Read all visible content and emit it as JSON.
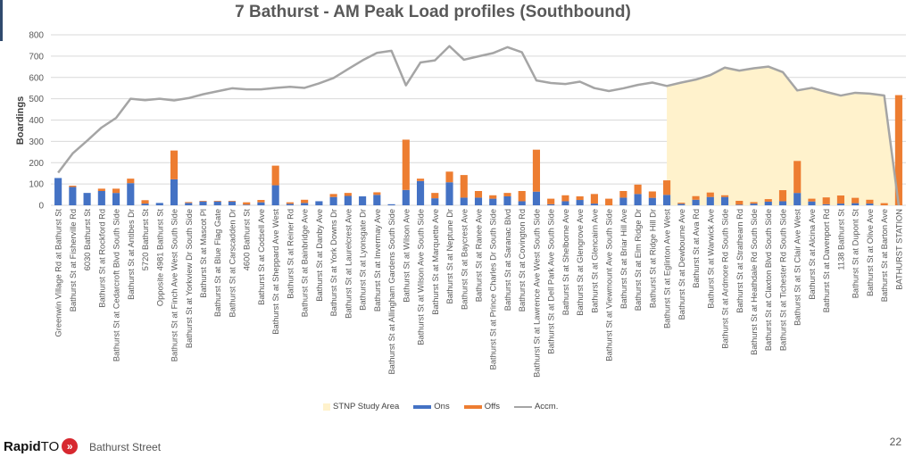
{
  "chart_data": {
    "type": "bar",
    "title": "7 Bathurst - AM Peak Load profiles (Southbound)",
    "xlabel": "",
    "ylabel": "Boardings",
    "ylim": [
      0,
      800
    ],
    "yticks": [
      0,
      100,
      200,
      300,
      400,
      500,
      600,
      700,
      800
    ],
    "grid": true,
    "legend_position": "bottom",
    "categories": [
      "Greenwin Village Rd at Bathurst St",
      "Bathurst St at Fisherville Rd",
      "6030 Bathurst St",
      "Bathurst St at Rockford Rd",
      "Bathurst St at Cedarcroft Blvd South Side",
      "Bathurst St at Antibes Dr",
      "5720 Bathurst St",
      "Opposite 4981 Bathurst St",
      "Bathurst St at Finch Ave West South Side",
      "Bathurst St at Yorkview Dr South Side",
      "Bathurst St at Mascot Pl",
      "Bathurst St at Blue Flag Gate",
      "Bathurst St at Carscadden Dr",
      "4600 Bathurst St",
      "Bathurst St at Codsell Ave",
      "Bathurst St at Sheppard Ave West",
      "Bathurst St at Reiner Rd",
      "Bathurst St at Bainbridge Ave",
      "Bathurst St at Danby Ave",
      "Bathurst St at York Downs Dr",
      "Bathurst St at Laurelcrest Ave",
      "Bathurst St at Lyonsgate Dr",
      "Bathurst St at Invermay Ave",
      "Bathurst St at Allingham Gardens South Side",
      "Bathurst St at Wilson Ave",
      "Bathurst St at Wilson Ave South Side",
      "Bathurst St at Marquette Ave",
      "Bathurst St at Neptune Dr",
      "Bathurst St at Baycrest Ave",
      "Bathurst St at Ranee Ave",
      "Bathurst St at Prince Charles Dr South Side",
      "Bathurst St at Saranac Blvd",
      "Bathurst St at Covington Rd",
      "Bathurst St at Lawrence Ave West South Side",
      "Bathurst St at Dell Park Ave South Side",
      "Bathurst St at Shelborne Ave",
      "Bathurst St at Glengrove Ave",
      "Bathurst St at Glencairn Ave",
      "Bathurst St at Viewmount Ave South Side",
      "Bathurst St at Briar Hill Ave",
      "Bathurst St at Elm Ridge Dr",
      "Bathurst St at Ridge Hill Dr",
      "Bathurst St at Eglinton Ave West",
      "Bathurst St at Dewbourne Ave",
      "Bathurst St at Ava Rd",
      "Bathurst St at Warwick Ave",
      "Bathurst St at Ardmore Rd South Side",
      "Bathurst St at Strathearn Rd",
      "Bathurst St at Heathdale Rd South Side",
      "Bathurst St at Claxton Blvd South Side",
      "Bathurst St at Tichester Rd South Side",
      "Bathurst St at St Clair Ave West",
      "Bathurst St at Alcina Ave",
      "Bathurst St at Davenport Rd",
      "1138 Bathurst St",
      "Bathurst St at Dupont St",
      "Bathurst St at Olive Ave",
      "Bathurst St at Barton Ave",
      "BATHURST STATION"
    ],
    "series": [
      {
        "name": "Ons",
        "kind": "stacked-bar",
        "color": "#4472c4",
        "values": [
          128,
          86,
          58,
          67,
          58,
          104,
          8,
          11,
          122,
          11,
          18,
          18,
          18,
          3,
          14,
          94,
          7,
          11,
          19,
          39,
          44,
          42,
          49,
          5,
          72,
          114,
          33,
          108,
          36,
          36,
          31,
          42,
          19,
          64,
          5,
          19,
          25,
          8,
          0,
          36,
          53,
          35,
          49,
          7,
          26,
          39,
          39,
          3,
          8,
          17,
          19,
          58,
          18,
          5,
          8,
          10,
          8,
          0,
          0
        ]
      },
      {
        "name": "Offs",
        "kind": "stacked-bar",
        "color": "#ed7d31",
        "values": [
          0,
          6,
          0,
          11,
          20,
          21,
          16,
          0,
          135,
          4,
          3,
          3,
          3,
          11,
          11,
          92,
          7,
          15,
          0,
          14,
          14,
          0,
          12,
          0,
          236,
          11,
          25,
          50,
          106,
          31,
          16,
          16,
          48,
          197,
          26,
          28,
          17,
          45,
          31,
          31,
          44,
          30,
          68,
          5,
          17,
          21,
          8,
          18,
          7,
          12,
          52,
          150,
          13,
          32,
          38,
          25,
          18,
          10,
          517
        ]
      },
      {
        "name": "Accm.",
        "kind": "line",
        "color": "#a5a5a5",
        "values": [
          153,
          243,
          303,
          365,
          410,
          500,
          493,
          500,
          492,
          503,
          521,
          535,
          549,
          544,
          544,
          551,
          556,
          551,
          572,
          597,
          639,
          680,
          715,
          725,
          563,
          670,
          680,
          747,
          683,
          699,
          714,
          742,
          718,
          586,
          574,
          569,
          580,
          550,
          536,
          549,
          565,
          576,
          560,
          576,
          590,
          611,
          646,
          632,
          643,
          651,
          625,
          539,
          551,
          532,
          515,
          528,
          524,
          515,
          0
        ]
      },
      {
        "name": "STNP Study Area",
        "kind": "area",
        "color": "#fff2cc",
        "from_category": "Bathurst St at Eglinton Ave West",
        "to_category": "BATHURST STATION"
      }
    ]
  },
  "legend": {
    "study_area": "STNP Study Area",
    "ons": "Ons",
    "offs": "Offs",
    "accm": "Accm."
  },
  "footer": {
    "brand_bold": "Rapid",
    "brand_rest": "TO",
    "subtitle": "Bathurst Street",
    "page_number": "22"
  }
}
